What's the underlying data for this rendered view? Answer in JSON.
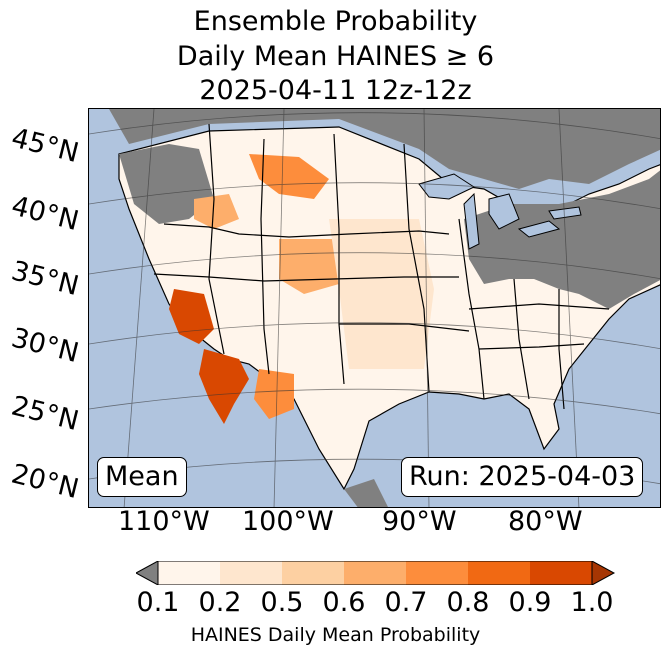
{
  "title": {
    "line1": "Ensemble Probability",
    "line2": "Daily Mean HAINES ≥ 6",
    "line3": "2025-04-11 12z-12z"
  },
  "map": {
    "region": "Contiguous United States",
    "latitude_labels": [
      "45°N",
      "40°N",
      "35°N",
      "30°N",
      "25°N",
      "20°N"
    ],
    "longitude_labels": [
      "110°W",
      "100°W",
      "90°W",
      "80°W"
    ],
    "colors": {
      "ocean": "#b0c4de",
      "no_data_land": "#808080",
      "low": "#fff5eb"
    },
    "mean_box": "Mean",
    "run_box": "Run: 2025-04-03"
  },
  "legend": {
    "ticks": [
      "0.1",
      "0.2",
      "0.5",
      "0.6",
      "0.7",
      "0.8",
      "0.9",
      "1.0"
    ],
    "colors": [
      "#fff5eb",
      "#fee6ce",
      "#fdd0a2",
      "#fdae6b",
      "#fd8d3c",
      "#f16913",
      "#d94801",
      "#a63603"
    ],
    "under_color": "#808080",
    "label": "HAINES Daily Mean Probability"
  }
}
